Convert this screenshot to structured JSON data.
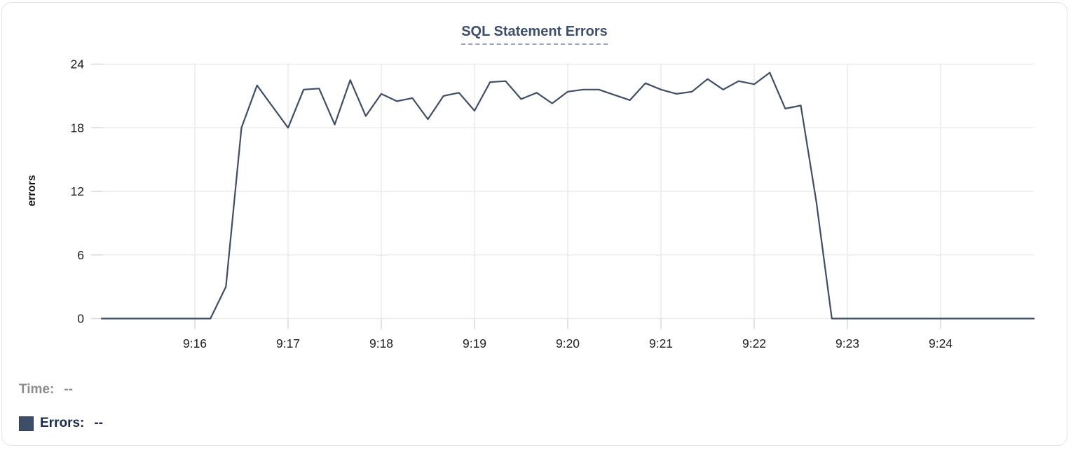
{
  "card": {
    "background": "#ffffff",
    "border_color": "#e3e3e3"
  },
  "chart": {
    "colors": {
      "line": "#3F4D68",
      "title": "#3E4E6E",
      "title_underline": "#9AA4BB",
      "grid": "#e8e8e8",
      "tick": "#d9d9d9",
      "axis_text": "#1c1c1c",
      "legend_time_text": "#8C8C8C",
      "legend_errors_text": "#1B2A52",
      "swatch": "#3E4D68"
    }
  },
  "chart_data": {
    "type": "line",
    "title": "SQL Statement Errors",
    "xlabel": "",
    "ylabel": "errors",
    "ylim": [
      0,
      24
    ],
    "yticks": [
      0,
      6,
      12,
      18,
      24
    ],
    "x_tick_labels": [
      "9:16",
      "9:17",
      "9:18",
      "9:19",
      "9:20",
      "9:21",
      "9:22",
      "9:23",
      "9:24"
    ],
    "grid": true,
    "legend_position": "bottom-left",
    "x": [
      "9:15:00",
      "9:15:10",
      "9:15:20",
      "9:15:30",
      "9:15:40",
      "9:15:50",
      "9:16:00",
      "9:16:10",
      "9:16:20",
      "9:16:30",
      "9:16:40",
      "9:16:50",
      "9:17:00",
      "9:17:10",
      "9:17:20",
      "9:17:30",
      "9:17:40",
      "9:17:50",
      "9:18:00",
      "9:18:10",
      "9:18:20",
      "9:18:30",
      "9:18:40",
      "9:18:50",
      "9:19:00",
      "9:19:10",
      "9:19:20",
      "9:19:30",
      "9:19:40",
      "9:19:50",
      "9:20:00",
      "9:20:10",
      "9:20:20",
      "9:20:30",
      "9:20:40",
      "9:20:50",
      "9:21:00",
      "9:21:10",
      "9:21:20",
      "9:21:30",
      "9:21:40",
      "9:21:50",
      "9:22:00",
      "9:22:10",
      "9:22:20",
      "9:22:30",
      "9:22:40",
      "9:22:50",
      "9:23:00",
      "9:23:10",
      "9:23:20",
      "9:23:30",
      "9:23:40",
      "9:23:50",
      "9:24:00",
      "9:24:10",
      "9:24:20",
      "9:24:30",
      "9:24:40",
      "9:24:50",
      "9:25:00"
    ],
    "series": [
      {
        "name": "Errors",
        "values": [
          0,
          0,
          0,
          0,
          0,
          0,
          0,
          0,
          3,
          18,
          22,
          20,
          18,
          21.6,
          21.7,
          18.3,
          22.5,
          19.1,
          21.2,
          20.5,
          20.8,
          18.8,
          21,
          21.3,
          19.6,
          22.3,
          22.4,
          20.7,
          21.3,
          20.3,
          21.4,
          21.6,
          21.6,
          21.1,
          20.6,
          22.2,
          21.6,
          21.2,
          21.4,
          22.6,
          21.6,
          22.4,
          22.1,
          23.2,
          19.8,
          20.1,
          11,
          0,
          0,
          0,
          0,
          0,
          0,
          0,
          0,
          0,
          0,
          0,
          0,
          0,
          0
        ]
      }
    ]
  },
  "tooltip_legend": {
    "time_label": "Time:",
    "time_value": "--",
    "errors_label": "Errors:",
    "errors_value": "--"
  }
}
